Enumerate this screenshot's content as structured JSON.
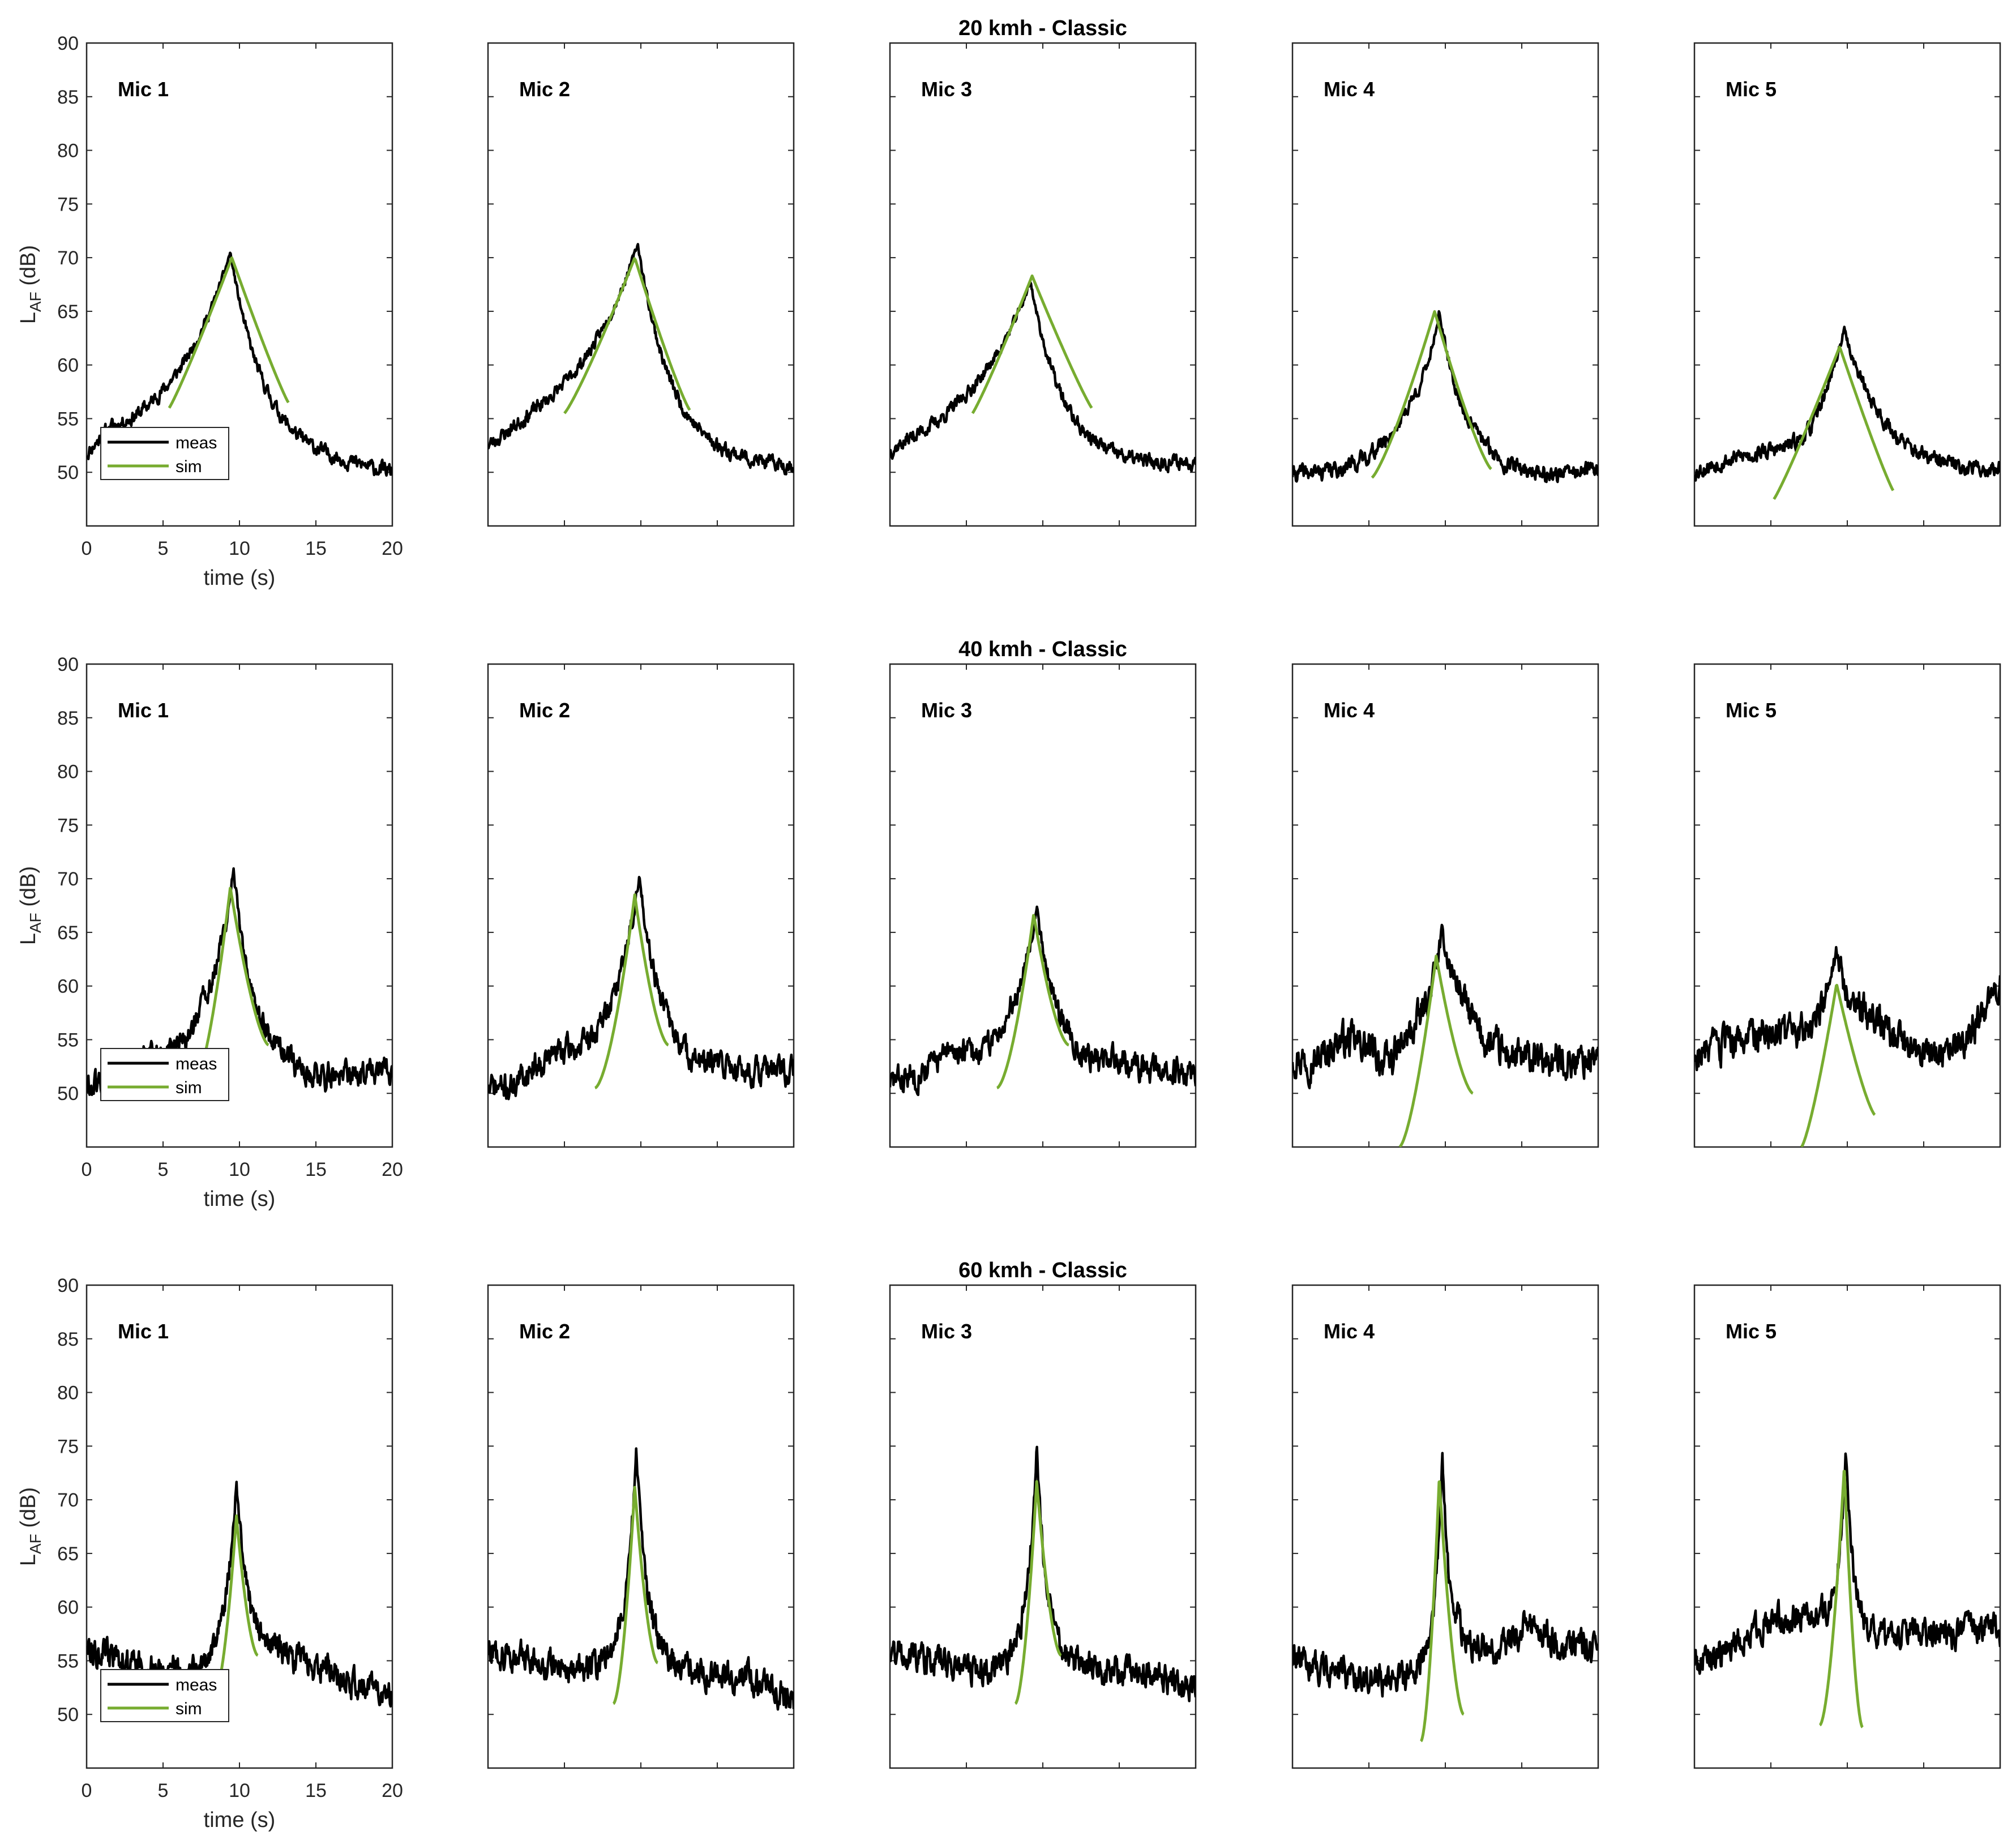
{
  "colors": {
    "meas": "#000000",
    "sim": "#77ac30"
  },
  "chart_data": {
    "type": "line",
    "layout": "3 rows x 5 columns small multiples",
    "xlabel": "time (s)",
    "ylabel_main": "L",
    "ylabel_sub": "AF",
    "ylabel_unit": "(dB)",
    "xlim": [
      0,
      20
    ],
    "ylim": [
      45,
      90
    ],
    "xticks": [
      "0",
      "5",
      "10",
      "15",
      "20"
    ],
    "yticks": [
      "50",
      "55",
      "60",
      "65",
      "70",
      "75",
      "80",
      "85",
      "90"
    ],
    "legend": [
      {
        "name": "meas",
        "color": "#000000"
      },
      {
        "name": "sim",
        "color": "#77ac30"
      }
    ],
    "legend_position": "lower-left of first panel in each row",
    "rows": [
      {
        "title": "20 kmh - Classic",
        "panels": [
          {
            "label": "Mic 1",
            "meas": {
              "baseline": [
                50.0,
                51.9,
                51.6,
                51.8,
                51.8,
                52.0,
                51.6,
                51.2,
                51.0,
                50.8,
                50.7,
                50.5,
                50.2,
                49.9
              ],
              "peak": 70.5,
              "peak_t": 9.4,
              "rise_tau": 3.8,
              "fall_tau": 2.2,
              "noise": 0.55,
              "seed": 11
            },
            "sim": {
              "start": 5.4,
              "end": 13.2,
              "peak": 70.0,
              "peak_t": 9.5,
              "start_v": 56.0,
              "end_v": 56.5,
              "p": 1.1
            }
          },
          {
            "label": "Mic 2",
            "meas": {
              "baseline": [
                50.5,
                51.3,
                52.0,
                52.2,
                52.3,
                52.5,
                52.3,
                51.7,
                51.2,
                51.0,
                50.8,
                50.7,
                50.5,
                50.5
              ],
              "peak": 71.3,
              "peak_t": 9.8,
              "rise_tau": 4.2,
              "fall_tau": 2.1,
              "noise": 0.55,
              "seed": 23
            },
            "sim": {
              "start": 5.0,
              "end": 13.2,
              "peak": 70.0,
              "peak_t": 9.6,
              "start_v": 55.5,
              "end_v": 55.8,
              "p": 1.15
            }
          },
          {
            "label": "Mic 3",
            "meas": {
              "baseline": [
                50.5,
                51.2,
                51.5,
                52.0,
                52.3,
                52.5,
                52.3,
                51.8,
                51.2,
                51.0,
                50.8,
                50.7,
                50.8,
                51.0
              ],
              "peak": 67.8,
              "peak_t": 9.2,
              "rise_tau": 3.8,
              "fall_tau": 1.9,
              "noise": 0.55,
              "seed": 37
            },
            "sim": {
              "start": 5.4,
              "end": 13.2,
              "peak": 68.3,
              "peak_t": 9.3,
              "start_v": 55.5,
              "end_v": 56.0,
              "p": 1.1
            }
          },
          {
            "label": "Mic 4",
            "meas": {
              "baseline": [
                49.8,
                49.9,
                50.1,
                50.6,
                51.5,
                52.8,
                52.0,
                51.6,
                51.3,
                50.2,
                50.0,
                49.7,
                50.0,
                50.3
              ],
              "peak": 65.0,
              "peak_t": 9.6,
              "rise_tau": 1.6,
              "fall_tau": 1.4,
              "noise": 0.6,
              "seed": 41
            },
            "sim": {
              "start": 5.2,
              "end": 13.0,
              "peak": 65.0,
              "peak_t": 9.3,
              "start_v": 49.5,
              "end_v": 50.3,
              "p": 1.25
            }
          },
          {
            "label": "Mic 5",
            "meas": {
              "baseline": [
                50.0,
                50.8,
                51.3,
                51.5,
                51.2,
                51.0,
                53.6,
                53.8,
                52.6,
                51.4,
                50.8,
                50.5,
                50.3,
                50.2
              ],
              "peak": 63.3,
              "peak_t": 9.8,
              "rise_tau": 1.6,
              "fall_tau": 1.7,
              "noise": 0.6,
              "seed": 53
            },
            "sim": {
              "start": 5.2,
              "end": 13.0,
              "peak": 61.7,
              "peak_t": 9.5,
              "start_v": 47.5,
              "end_v": 48.3,
              "p": 1.1
            }
          }
        ]
      },
      {
        "title": "40 kmh - Classic",
        "panels": [
          {
            "label": "Mic 1",
            "meas": {
              "baseline": [
                50.5,
                51.0,
                53.0,
                53.0,
                52.5,
                54.0,
                53.5,
                52.5,
                52.0,
                51.8,
                51.5,
                51.5,
                52.0,
                52.0
              ],
              "peak": 70.8,
              "peak_t": 9.6,
              "rise_tau": 1.5,
              "fall_tau": 1.3,
              "noise": 1.0,
              "seed": 61
            },
            "sim": {
              "start": 7.2,
              "end": 11.9,
              "peak": 69.2,
              "peak_t": 9.4,
              "start_v": 51.5,
              "end_v": 54.5,
              "p": 1.5
            }
          },
          {
            "label": "Mic 2",
            "meas": {
              "baseline": [
                50.5,
                50.5,
                52.5,
                53.5,
                53.0,
                53.5,
                55.0,
                54.0,
                52.5,
                52.0,
                52.5,
                52.0,
                52.0,
                52.0
              ],
              "peak": 70.1,
              "peak_t": 9.9,
              "rise_tau": 1.5,
              "fall_tau": 1.3,
              "noise": 1.0,
              "seed": 71
            },
            "sim": {
              "start": 7.0,
              "end": 11.8,
              "peak": 68.5,
              "peak_t": 9.6,
              "start_v": 50.5,
              "end_v": 54.5,
              "p": 1.6
            }
          },
          {
            "label": "Mic 3",
            "meas": {
              "baseline": [
                51.0,
                51.5,
                53.0,
                53.5,
                52.5,
                53.5,
                54.0,
                53.0,
                52.5,
                52.5,
                53.0,
                52.0,
                52.0,
                52.0
              ],
              "peak": 67.4,
              "peak_t": 9.6,
              "rise_tau": 1.5,
              "fall_tau": 1.3,
              "noise": 1.0,
              "seed": 83
            },
            "sim": {
              "start": 7.0,
              "end": 11.7,
              "peak": 66.7,
              "peak_t": 9.4,
              "start_v": 50.5,
              "end_v": 54.5,
              "p": 1.6
            }
          },
          {
            "label": "Mic 4",
            "meas": {
              "baseline": [
                53.5,
                53.0,
                55.0,
                54.5,
                52.5,
                54.5,
                56.0,
                57.5,
                54.5,
                53.5,
                53.0,
                53.0,
                53.0,
                53.5
              ],
              "peak": 65.0,
              "peak_t": 9.8,
              "rise_tau": 0.9,
              "fall_tau": 1.0,
              "noise": 1.3,
              "seed": 97
            },
            "sim": {
              "start": 7.0,
              "end": 11.8,
              "peak": 62.8,
              "peak_t": 9.4,
              "start_v": 45.0,
              "end_v": 50.0,
              "p": 1.5
            }
          },
          {
            "label": "Mic 5",
            "meas": {
              "baseline": [
                53.5,
                54.0,
                55.0,
                56.0,
                55.0,
                55.5,
                55.5,
                57.0,
                56.0,
                54.0,
                53.5,
                54.0,
                56.5,
                59.5
              ],
              "peak": 63.3,
              "peak_t": 9.3,
              "rise_tau": 0.9,
              "fall_tau": 1.0,
              "noise": 1.3,
              "seed": 103
            },
            "sim": {
              "start": 7.0,
              "end": 11.8,
              "peak": 60.2,
              "peak_t": 9.3,
              "start_v": 45.0,
              "end_v": 48.0,
              "p": 1.3
            }
          }
        ]
      },
      {
        "title": "60 kmh - Classic",
        "panels": [
          {
            "label": "Mic 1",
            "meas": {
              "baseline": [
                56.5,
                55.5,
                54.5,
                54.0,
                54.0,
                53.5,
                55.0,
                56.0,
                56.0,
                55.0,
                54.5,
                53.0,
                52.5,
                52.0
              ],
              "peak": 72.0,
              "peak_t": 9.8,
              "rise_tau": 0.7,
              "fall_tau": 0.7,
              "noise": 1.1,
              "seed": 113
            },
            "sim": {
              "start": 8.4,
              "end": 11.2,
              "peak": 68.5,
              "peak_t": 9.8,
              "start_v": 52.0,
              "end_v": 55.5,
              "p": 1.7
            }
          },
          {
            "label": "Mic 2",
            "meas": {
              "baseline": [
                56.0,
                55.5,
                55.0,
                54.5,
                54.0,
                54.5,
                55.5,
                55.5,
                54.5,
                54.0,
                53.5,
                53.5,
                52.5,
                51.0
              ],
              "peak": 75.1,
              "peak_t": 9.7,
              "rise_tau": 0.6,
              "fall_tau": 0.6,
              "noise": 1.1,
              "seed": 127
            },
            "sim": {
              "start": 8.2,
              "end": 11.1,
              "peak": 71.2,
              "peak_t": 9.6,
              "start_v": 51.0,
              "end_v": 54.8,
              "p": 1.7
            }
          },
          {
            "label": "Mic 3",
            "meas": {
              "baseline": [
                56.0,
                55.5,
                55.0,
                54.5,
                54.0,
                54.5,
                55.5,
                55.0,
                54.5,
                54.0,
                54.0,
                54.0,
                53.0,
                52.5
              ],
              "peak": 75.1,
              "peak_t": 9.6,
              "rise_tau": 0.6,
              "fall_tau": 0.6,
              "noise": 1.1,
              "seed": 131
            },
            "sim": {
              "start": 8.2,
              "end": 11.2,
              "peak": 71.7,
              "peak_t": 9.6,
              "start_v": 51.0,
              "end_v": 55.5,
              "p": 1.7
            }
          },
          {
            "label": "Mic 4",
            "meas": {
              "baseline": [
                55.0,
                54.5,
                54.0,
                53.5,
                53.0,
                53.5,
                55.0,
                57.0,
                56.0,
                56.0,
                58.5,
                57.0,
                56.5,
                56.0
              ],
              "peak": 74.3,
              "peak_t": 9.8,
              "rise_tau": 0.45,
              "fall_tau": 0.45,
              "noise": 1.1,
              "seed": 139
            },
            "sim": {
              "start": 8.4,
              "end": 11.2,
              "peak": 72.0,
              "peak_t": 9.6,
              "start_v": 47.5,
              "end_v": 50.0,
              "p": 1.7
            }
          },
          {
            "label": "Mic 5",
            "meas": {
              "baseline": [
                55.0,
                55.5,
                57.0,
                58.5,
                59.0,
                59.0,
                58.5,
                58.0,
                57.0,
                57.5,
                57.5,
                57.5,
                58.0,
                58.0
              ],
              "peak": 75.2,
              "peak_t": 9.9,
              "rise_tau": 0.45,
              "fall_tau": 0.45,
              "noise": 1.1,
              "seed": 149
            },
            "sim": {
              "start": 8.2,
              "end": 11.0,
              "peak": 73.0,
              "peak_t": 9.8,
              "start_v": 49.0,
              "end_v": 48.8,
              "p": 1.7
            }
          }
        ]
      }
    ]
  }
}
